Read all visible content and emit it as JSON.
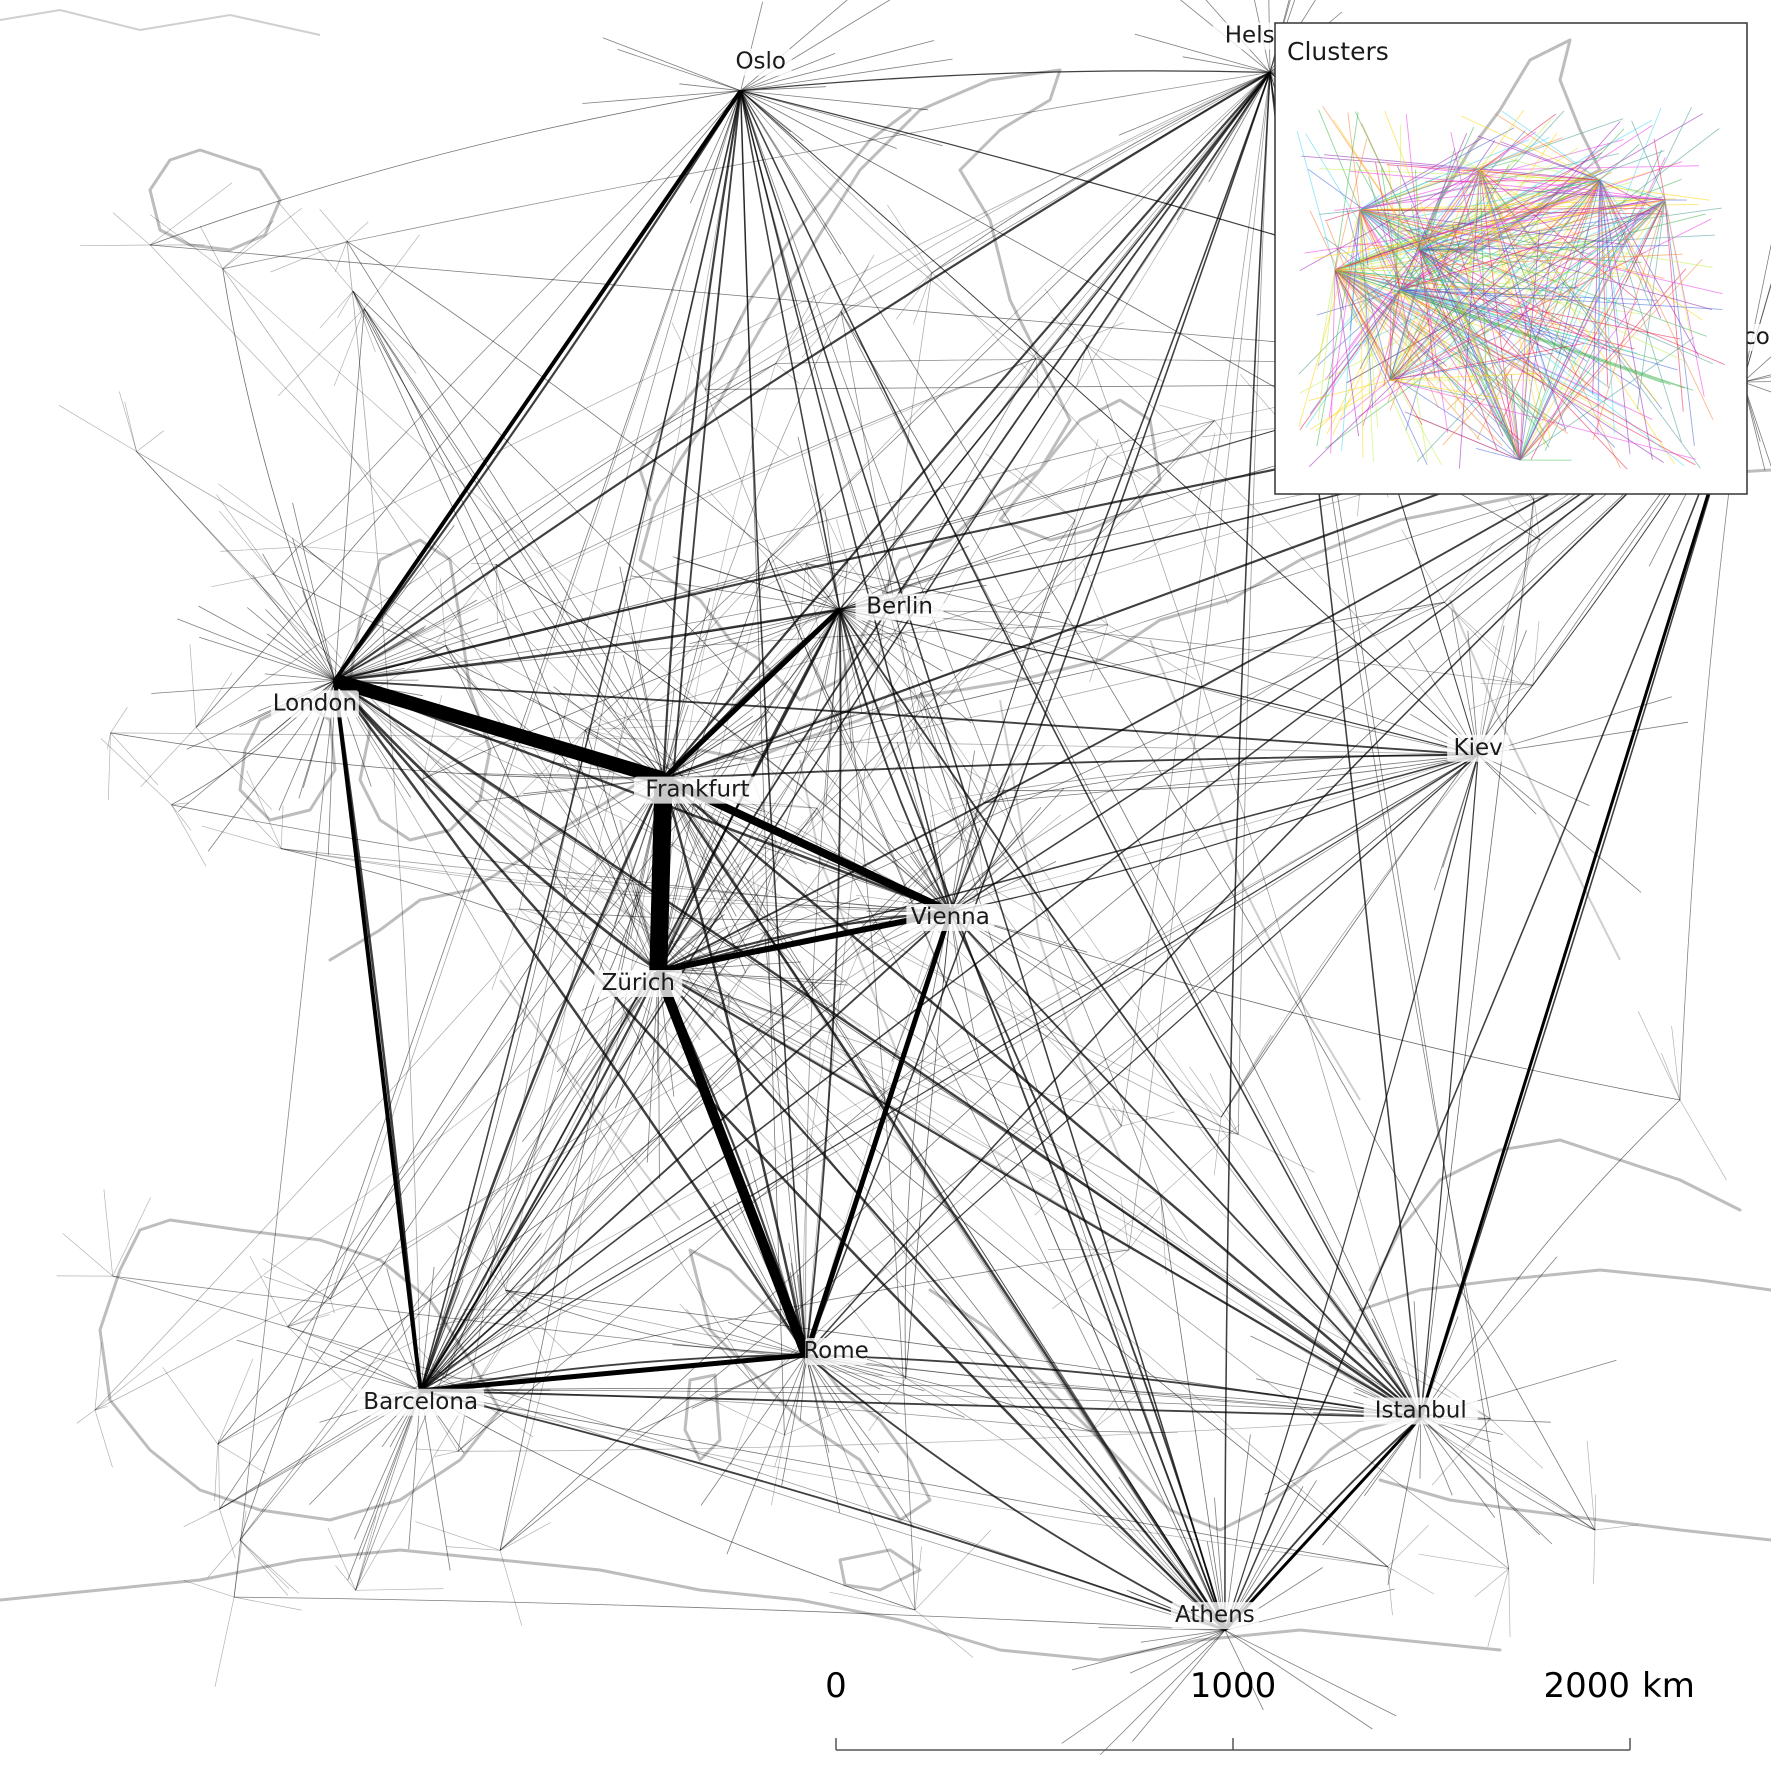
{
  "cities": [
    {
      "name": "Oslo",
      "lon": 10.75,
      "lat": 59.91,
      "weight": 2
    },
    {
      "name": "Helsinki",
      "lon": 24.94,
      "lat": 60.17,
      "weight": 2
    },
    {
      "name": "Moscow",
      "lon": 37.62,
      "lat": 55.76,
      "weight": 2
    },
    {
      "name": "London",
      "lon": -0.13,
      "lat": 51.51,
      "weight": 5
    },
    {
      "name": "Berlin",
      "lon": 13.4,
      "lat": 52.52,
      "weight": 3
    },
    {
      "name": "Kiev",
      "lon": 30.52,
      "lat": 50.45,
      "weight": 1
    },
    {
      "name": "Frankfurt",
      "lon": 8.68,
      "lat": 50.11,
      "weight": 5
    },
    {
      "name": "Vienna",
      "lon": 16.37,
      "lat": 48.21,
      "weight": 3
    },
    {
      "name": "Zürich",
      "lon": 8.54,
      "lat": 47.37,
      "weight": 4
    },
    {
      "name": "Istanbul",
      "lon": 28.98,
      "lat": 41.01,
      "weight": 3
    },
    {
      "name": "Barcelona",
      "lon": 2.17,
      "lat": 41.39,
      "weight": 3
    },
    {
      "name": "Rome",
      "lon": 12.5,
      "lat": 41.9,
      "weight": 3
    },
    {
      "name": "Athens",
      "lon": 23.73,
      "lat": 37.98,
      "weight": 3
    }
  ],
  "scale_bar": {
    "tick_values": [
      "0",
      "1000",
      "2000"
    ],
    "unit": "km"
  },
  "inset": {
    "title": "Clusters"
  },
  "colors": {
    "coastline": "#bdbdbd",
    "edges": "#000000",
    "cluster_palette": [
      "#e6194b",
      "#3cb44b",
      "#4363d8",
      "#f58231",
      "#911eb4",
      "#42d4f4",
      "#f032e6",
      "#bfef45",
      "#ffd400",
      "#469990"
    ]
  }
}
